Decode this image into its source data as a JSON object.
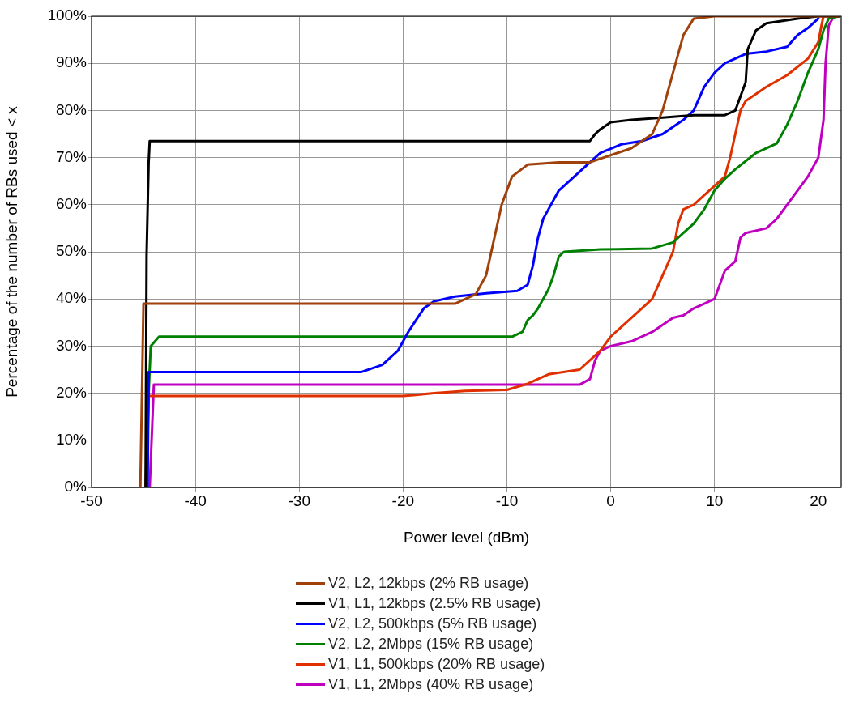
{
  "chart_data": {
    "type": "line",
    "xlabel": "Power level (dBm)",
    "ylabel": "Percentage of the number of RBs used < x",
    "xlim": [
      -50,
      22.2
    ],
    "xticks": [
      -50,
      -40,
      -30,
      -20,
      -10,
      0,
      10,
      20
    ],
    "ylim": [
      0,
      100
    ],
    "yticks": [
      {
        "value": 0,
        "label": "0%"
      },
      {
        "value": 10,
        "label": "10%"
      },
      {
        "value": 20,
        "label": "20%"
      },
      {
        "value": 30,
        "label": "30%"
      },
      {
        "value": 40,
        "label": "40%"
      },
      {
        "value": 50,
        "label": "50%"
      },
      {
        "value": 60,
        "label": "60%"
      },
      {
        "value": 70,
        "label": "70%"
      },
      {
        "value": 80,
        "label": "80%"
      },
      {
        "value": 90,
        "label": "90%"
      },
      {
        "value": 100,
        "label": "100%"
      }
    ],
    "grid": true,
    "legend": "bottom",
    "marker": "none",
    "line_style": "solid",
    "series": [
      {
        "name": "V2, L2, 12kbps (2% RB usage)",
        "color": "#a0400a",
        "x": [
          -45.3,
          -45,
          -15,
          -13,
          -12,
          -10.5,
          -9.5,
          -8,
          -5,
          -2,
          0,
          2,
          4,
          5,
          6,
          7,
          8,
          10,
          22
        ],
        "values": [
          0,
          39,
          39,
          41,
          45,
          60,
          66,
          68.5,
          69,
          69,
          70.5,
          72,
          75,
          80,
          88,
          96,
          99.5,
          100,
          100
        ]
      },
      {
        "name": "V1, L1, 12kbps (2.5% RB usage)",
        "color": "#000000",
        "x": [
          -44.8,
          -44.7,
          -44.5,
          -44.4,
          -2,
          -1.5,
          -1,
          0,
          2,
          5,
          8,
          11,
          12,
          12.5,
          13,
          13.2,
          14,
          15,
          18,
          20,
          22
        ],
        "values": [
          0,
          49,
          69,
          73.5,
          73.5,
          75,
          76,
          77.5,
          78,
          78.5,
          79,
          79,
          80,
          83,
          86,
          93,
          97,
          98.5,
          99.5,
          100,
          100
        ]
      },
      {
        "name": "V2, L2, 500kbps (5% RB usage)",
        "color": "#0000ff",
        "x": [
          -44.6,
          -44.5,
          -24,
          -22,
          -20.5,
          -19.5,
          -18,
          -17,
          -15,
          -12,
          -9,
          -8,
          -7.5,
          -7,
          -6.5,
          -6,
          -5,
          -3,
          -1,
          1,
          3,
          5,
          7,
          8,
          9,
          10,
          11,
          13,
          15,
          17,
          18,
          19,
          20
        ],
        "values": [
          0,
          24.5,
          24.5,
          26,
          29,
          33,
          38,
          39.5,
          40.5,
          41.2,
          41.7,
          43,
          47,
          53,
          57,
          59,
          63,
          67,
          71,
          72.8,
          73.5,
          75,
          78,
          80,
          85,
          88,
          90,
          92,
          92.5,
          93.5,
          96,
          97.5,
          99.5
        ]
      },
      {
        "name": "V2, L2, 2Mbps (15% RB usage)",
        "color": "#008000",
        "x": [
          -44.7,
          -44.5,
          -44.3,
          -43.5,
          -9.5,
          -8.5,
          -8,
          -7.5,
          -7,
          -6,
          -5.5,
          -5,
          -4.5,
          -1,
          4,
          6,
          7,
          8,
          9,
          10,
          11,
          12,
          14,
          16,
          17,
          18,
          19,
          20,
          20.5,
          21,
          22
        ],
        "values": [
          0,
          20,
          30,
          32,
          32,
          33,
          35.5,
          36.5,
          38,
          42,
          45,
          49,
          50,
          50.5,
          50.7,
          52,
          54,
          56,
          59,
          63,
          65.5,
          67.5,
          71,
          73,
          77,
          82,
          88,
          93,
          97,
          99.5,
          100
        ]
      },
      {
        "name": "V1, L1, 500kbps (20% RB usage)",
        "color": "#e03000",
        "x": [
          -44.8,
          -44.5,
          -20,
          -17,
          -14,
          -10,
          -8,
          -6,
          -3,
          -2,
          -1,
          0,
          1,
          3,
          4,
          5,
          6,
          6.5,
          7,
          8,
          9,
          10,
          11,
          11.5,
          12,
          12.5,
          13,
          15,
          17,
          19,
          20,
          20.3,
          20.5,
          22
        ],
        "values": [
          0,
          19.4,
          19.4,
          20,
          20.5,
          20.7,
          22,
          24,
          25,
          27,
          29,
          32,
          34,
          38,
          40,
          45,
          50,
          56,
          59,
          60,
          62,
          64,
          66,
          70,
          75,
          80,
          82,
          85,
          87.5,
          91,
          94.5,
          98,
          100,
          100
        ]
      },
      {
        "name": "V1, L1, 2Mbps (40% RB usage)",
        "color": "#c000c0",
        "x": [
          -44.4,
          -44,
          -3,
          -2,
          -1.5,
          -1,
          0,
          2,
          4,
          6,
          7,
          8,
          9,
          10,
          11,
          12,
          12.5,
          13,
          15,
          16,
          17,
          18,
          19,
          20,
          20.5,
          20.7,
          21,
          21.5,
          22
        ],
        "values": [
          0,
          21.8,
          21.8,
          23,
          27,
          29,
          30,
          31,
          33,
          36,
          36.5,
          38,
          39,
          40,
          46,
          48,
          53,
          54,
          55,
          57,
          60,
          63,
          66,
          70,
          78,
          90,
          98,
          100,
          100
        ]
      }
    ]
  }
}
